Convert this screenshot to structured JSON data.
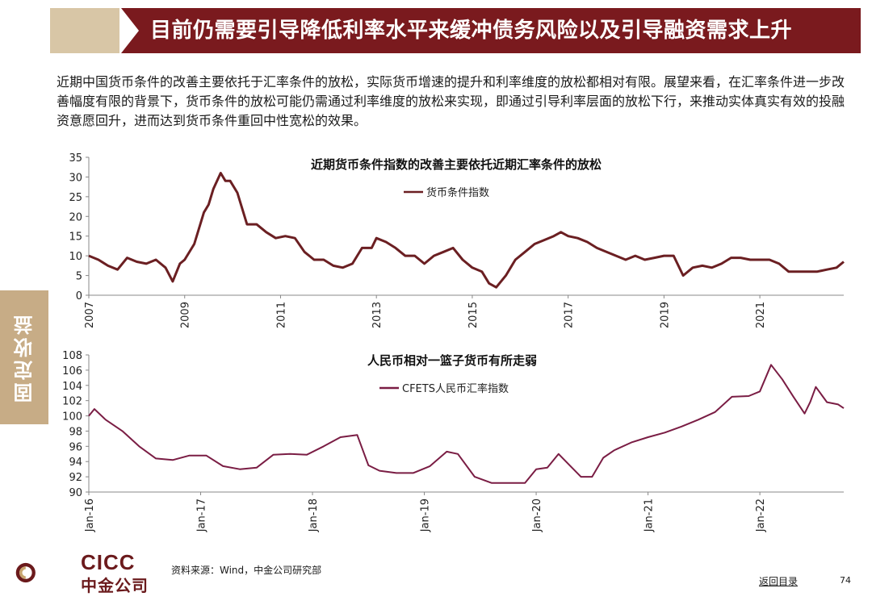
{
  "header": {
    "title": "目前仍需要引导降低利率水平来缓冲债务风险以及引导融资需求上升"
  },
  "intro": {
    "text": "近期中国货币条件的改善主要依托于汇率条件的放松，实际货币增速的提升和利率维度的放松都相对有限。展望来看，在汇率条件进一步改善幅度有限的背景下，货币条件的放松可能仍需通过利率维度的放松来实现，即通过引导利率层面的放松下行，来推动实体真实有效的投融资意愿回升，进而达到货币条件重回中性宽松的效果。"
  },
  "side_tab": {
    "label": "固定收益"
  },
  "chart_data": [
    {
      "type": "line",
      "title": "近期货币条件指数的改善主要依托近期汇率条件的放松",
      "xlabel": "",
      "ylabel": "",
      "ylim": [
        0,
        35
      ],
      "xlim": [
        2007,
        2022.75
      ],
      "yticks": [
        0,
        5,
        10,
        15,
        20,
        25,
        30,
        35
      ],
      "xticks": [
        "2007",
        "2009",
        "2011",
        "2013",
        "2015",
        "2017",
        "2019",
        "2021"
      ],
      "grid": false,
      "legend_position": "top-center",
      "color": "#6b1f22",
      "series": [
        {
          "name": "货币条件指数",
          "x": [
            2007.0,
            2007.2,
            2007.4,
            2007.6,
            2007.8,
            2008.0,
            2008.2,
            2008.4,
            2008.6,
            2008.75,
            2008.9,
            2009.0,
            2009.2,
            2009.4,
            2009.5,
            2009.6,
            2009.75,
            2009.85,
            2009.95,
            2010.1,
            2010.3,
            2010.5,
            2010.7,
            2010.9,
            2011.1,
            2011.3,
            2011.5,
            2011.7,
            2011.9,
            2012.1,
            2012.3,
            2012.5,
            2012.7,
            2012.9,
            2013.0,
            2013.2,
            2013.4,
            2013.6,
            2013.8,
            2014.0,
            2014.2,
            2014.4,
            2014.6,
            2014.8,
            2015.0,
            2015.2,
            2015.35,
            2015.5,
            2015.7,
            2015.9,
            2016.1,
            2016.3,
            2016.5,
            2016.7,
            2016.85,
            2017.0,
            2017.2,
            2017.4,
            2017.6,
            2017.8,
            2018.0,
            2018.2,
            2018.4,
            2018.6,
            2018.8,
            2019.0,
            2019.2,
            2019.4,
            2019.6,
            2019.8,
            2020.0,
            2020.2,
            2020.4,
            2020.6,
            2020.8,
            2021.0,
            2021.2,
            2021.4,
            2021.6,
            2021.8,
            2022.0,
            2022.2,
            2022.4,
            2022.6,
            2022.75
          ],
          "values": [
            10,
            9,
            7.5,
            6.5,
            9.5,
            8.5,
            8,
            9,
            7,
            3.5,
            8,
            9,
            13,
            21,
            23,
            27,
            31,
            29,
            29,
            26,
            18,
            18,
            16,
            14.5,
            15,
            14.5,
            11,
            9,
            9,
            7.5,
            7,
            8,
            12,
            12,
            14.5,
            13.5,
            12,
            10,
            10,
            8,
            10,
            11,
            12,
            9,
            7,
            6,
            3,
            2,
            5,
            9,
            11,
            13,
            14,
            15,
            16,
            15,
            14.5,
            13.5,
            12,
            11,
            10,
            9,
            10,
            9,
            9.5,
            10,
            10,
            5,
            7,
            7.5,
            7,
            8,
            9.5,
            9.5,
            9,
            9,
            9,
            8,
            6,
            6,
            6,
            6,
            6.5,
            7,
            8.5
          ]
        }
      ]
    },
    {
      "type": "line",
      "title": "人民币相对一篮子货币有所走弱",
      "xlabel": "",
      "ylabel": "",
      "ylim": [
        90,
        108
      ],
      "xlim": [
        2016.0,
        2022.75
      ],
      "yticks": [
        90,
        92,
        94,
        96,
        98,
        100,
        102,
        104,
        106,
        108
      ],
      "xticks": [
        "Jan-16",
        "Jan-17",
        "Jan-18",
        "Jan-19",
        "Jan-20",
        "Jan-21",
        "Jan-22"
      ],
      "grid": false,
      "legend_position": "top-center",
      "color": "#7a1d44",
      "series": [
        {
          "name": "CFETS人民币汇率指数",
          "x": [
            2016.0,
            2016.05,
            2016.15,
            2016.3,
            2016.45,
            2016.6,
            2016.75,
            2016.9,
            2017.05,
            2017.2,
            2017.35,
            2017.5,
            2017.65,
            2017.8,
            2017.95,
            2018.1,
            2018.25,
            2018.4,
            2018.5,
            2018.6,
            2018.75,
            2018.9,
            2019.05,
            2019.2,
            2019.3,
            2019.45,
            2019.6,
            2019.75,
            2019.9,
            2020.0,
            2020.1,
            2020.2,
            2020.3,
            2020.4,
            2020.5,
            2020.6,
            2020.7,
            2020.85,
            2021.0,
            2021.15,
            2021.3,
            2021.45,
            2021.6,
            2021.75,
            2021.9,
            2022.0,
            2022.1,
            2022.2,
            2022.3,
            2022.4,
            2022.45,
            2022.5,
            2022.6,
            2022.7,
            2022.75
          ],
          "values": [
            100,
            100.9,
            99.5,
            98,
            96,
            94.4,
            94.2,
            94.8,
            94.8,
            93.4,
            93,
            93.2,
            94.9,
            95,
            94.9,
            96,
            97.2,
            97.5,
            93.5,
            92.8,
            92.5,
            92.5,
            93.4,
            95.3,
            95.0,
            92,
            91.2,
            91.2,
            91.2,
            93,
            93.2,
            95,
            93.5,
            92,
            92,
            94.5,
            95.5,
            96.5,
            97.2,
            97.8,
            98.6,
            99.5,
            100.5,
            102.5,
            102.6,
            103.2,
            106.7,
            104.8,
            102.5,
            100.3,
            101.8,
            103.8,
            101.8,
            101.5,
            101
          ]
        }
      ]
    }
  ],
  "footer": {
    "logo_en": "CICC",
    "logo_cn": "中金公司",
    "source": "资料来源：Wind，中金公司研究部",
    "toc_link": "返回目录",
    "page_number": "74"
  },
  "colors": {
    "brand_dark": "#7a1a1e",
    "brand_light": "#d8c6a6",
    "side_tab": "#c7ac86"
  }
}
